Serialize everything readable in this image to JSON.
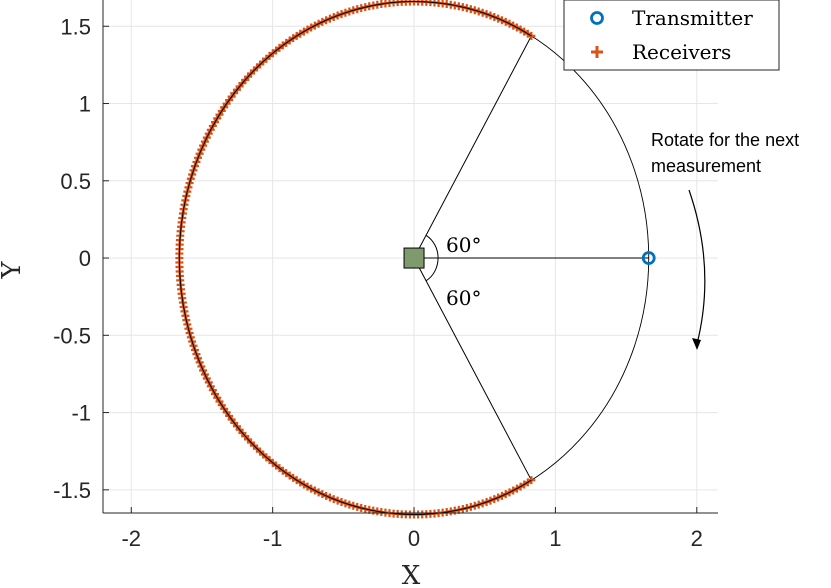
{
  "chart_data": {
    "type": "scatter",
    "xlabel": "X",
    "ylabel": "Y",
    "xlim": [
      -2.2,
      2.15
    ],
    "ylim": [
      -1.65,
      1.67
    ],
    "x_ticks": [
      -2,
      -1,
      0,
      1,
      2
    ],
    "x_tick_labels": [
      "-2",
      "-1",
      "0",
      "1",
      "2"
    ],
    "y_ticks": [
      -1.5,
      -1,
      -0.5,
      0,
      0.5,
      1,
      1.5
    ],
    "y_tick_labels": [
      "-1.5",
      "-1",
      "-0.5",
      "0",
      "0.5",
      "1",
      "1.5"
    ],
    "grid": true,
    "legend_position": "top-right",
    "series": [
      {
        "name": "Transmitter",
        "marker": "circle",
        "color": "#0072BD",
        "points": [
          [
            1.66,
            0
          ]
        ]
      },
      {
        "name": "Receivers",
        "marker": "plus",
        "color": "#D95319",
        "radius": 1.66,
        "angle_start_deg": 60,
        "angle_end_deg": 300,
        "angle_step_deg": 1
      }
    ],
    "center": {
      "x": 0,
      "y": 0,
      "marker": "square",
      "color": "#7F9B6E"
    },
    "circle_radius": 1.66,
    "rays_angles_deg": [
      0,
      60,
      -60
    ],
    "annotations": [
      {
        "text": "60°",
        "angle_deg": 30
      },
      {
        "text": "60°",
        "angle_deg": -30
      },
      {
        "text_lines": [
          "Rotate for the next",
          "measurement"
        ]
      }
    ]
  },
  "legend": {
    "transmitter": "Transmitter",
    "receivers": "Receivers"
  },
  "labels": {
    "x": "X",
    "y": "Y",
    "angle_upper": "60°",
    "angle_lower": "60°",
    "rotate_line1": "Rotate for the next",
    "rotate_line2": "measurement"
  }
}
